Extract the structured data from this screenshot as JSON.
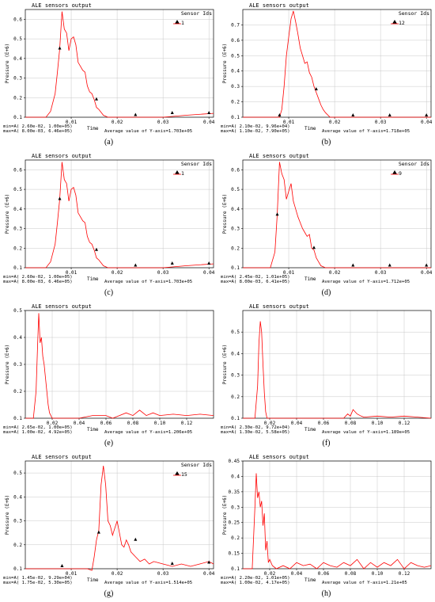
{
  "chart_data": [
    {
      "type": "line",
      "caption": "(a)",
      "title": "ALE sensors output",
      "legend_header": "Sensor Ids",
      "legend_entry": "1",
      "ylabel": "Pressure (E+6)",
      "xlabel": "Time",
      "ylim": [
        0.1,
        0.65
      ],
      "xlim": [
        0,
        0.041
      ],
      "yticks": [
        0.1,
        0.2,
        0.3,
        0.4,
        0.5,
        0.6
      ],
      "xticks": [
        0.01,
        0.02,
        0.03,
        0.04
      ],
      "stats": [
        "min=A(   2.60e-02,  1.00e+05)",
        "max=A(   8.00e-03,  6.46e+05)"
      ],
      "average": "Average value of Y-axis=1.703e+05",
      "series": [
        {
          "x": [
            0,
            0.0045,
            0.0055,
            0.0065,
            0.007,
            0.0075,
            0.008,
            0.0085,
            0.009,
            0.0095,
            0.01,
            0.0105,
            0.011,
            0.0115,
            0.012,
            0.0125,
            0.013,
            0.0135,
            0.014,
            0.0145,
            0.015,
            0.0155,
            0.016,
            0.0165,
            0.017,
            0.018,
            0.02,
            0.03,
            0.035,
            0.041
          ],
          "y": [
            0.1,
            0.1,
            0.13,
            0.22,
            0.33,
            0.45,
            0.64,
            0.55,
            0.53,
            0.44,
            0.5,
            0.51,
            0.47,
            0.38,
            0.36,
            0.34,
            0.33,
            0.26,
            0.23,
            0.22,
            0.19,
            0.15,
            0.14,
            0.125,
            0.11,
            0.1,
            0.1,
            0.1,
            0.11,
            0.12
          ]
        }
      ],
      "markers": [
        {
          "x": 0.0075,
          "y": 0.45
        },
        {
          "x": 0.0155,
          "y": 0.19
        },
        {
          "x": 0.024,
          "y": 0.11
        },
        {
          "x": 0.032,
          "y": 0.12
        },
        {
          "x": 0.04,
          "y": 0.12
        }
      ]
    },
    {
      "type": "line",
      "caption": "(b)",
      "title": "ALE sensors output",
      "legend_header": "Sensor Ids",
      "legend_entry": "12",
      "ylabel": "Pressure (E+6)",
      "xlabel": "Time",
      "ylim": [
        0.1,
        0.8
      ],
      "xlim": [
        0,
        0.041
      ],
      "yticks": [
        0.1,
        0.2,
        0.3,
        0.4,
        0.5,
        0.6,
        0.7
      ],
      "xticks": [
        0.01,
        0.02,
        0.03,
        0.04
      ],
      "stats": [
        "min=A(   2.10e-02,  9.96e+04)",
        "max=A(   1.10e-02,  7.90e+05)"
      ],
      "average": "Average value of Y-axis=1.718e+05",
      "series": [
        {
          "x": [
            0,
            0.008,
            0.0085,
            0.009,
            0.0095,
            0.01,
            0.0105,
            0.011,
            0.0115,
            0.012,
            0.0125,
            0.013,
            0.0135,
            0.014,
            0.0145,
            0.015,
            0.0155,
            0.016,
            0.0165,
            0.017,
            0.0175,
            0.018,
            0.019,
            0.041
          ],
          "y": [
            0.1,
            0.1,
            0.15,
            0.3,
            0.5,
            0.62,
            0.74,
            0.79,
            0.72,
            0.64,
            0.55,
            0.5,
            0.45,
            0.46,
            0.39,
            0.36,
            0.3,
            0.26,
            0.22,
            0.18,
            0.15,
            0.13,
            0.1,
            0.1
          ]
        }
      ],
      "markers": [
        {
          "x": 0.008,
          "y": 0.11
        },
        {
          "x": 0.016,
          "y": 0.28
        },
        {
          "x": 0.024,
          "y": 0.11
        },
        {
          "x": 0.032,
          "y": 0.11
        },
        {
          "x": 0.04,
          "y": 0.11
        }
      ]
    },
    {
      "type": "line",
      "caption": "(c)",
      "title": "ALE sensors output",
      "legend_header": "Sensor Ids",
      "legend_entry": "1",
      "ylabel": "Pressure (E+6)",
      "xlabel": "Time",
      "ylim": [
        0.1,
        0.65
      ],
      "xlim": [
        0,
        0.041
      ],
      "yticks": [
        0.1,
        0.2,
        0.3,
        0.4,
        0.5,
        0.6
      ],
      "xticks": [
        0.01,
        0.02,
        0.03,
        0.04
      ],
      "stats": [
        "min=A(   2.60e-02,  1.00e+05)",
        "max=A(   8.00e-03,  6.46e+05)"
      ],
      "average": "Average value of Y-axis=1.703e+05",
      "series": [
        {
          "x": [
            0,
            0.0045,
            0.0055,
            0.0065,
            0.007,
            0.0075,
            0.008,
            0.0085,
            0.009,
            0.0095,
            0.01,
            0.0105,
            0.011,
            0.0115,
            0.012,
            0.0125,
            0.013,
            0.0135,
            0.014,
            0.0145,
            0.015,
            0.0155,
            0.016,
            0.0165,
            0.017,
            0.018,
            0.02,
            0.03,
            0.035,
            0.041
          ],
          "y": [
            0.1,
            0.1,
            0.13,
            0.22,
            0.33,
            0.45,
            0.64,
            0.55,
            0.53,
            0.44,
            0.5,
            0.51,
            0.47,
            0.38,
            0.36,
            0.34,
            0.33,
            0.26,
            0.23,
            0.22,
            0.19,
            0.15,
            0.14,
            0.125,
            0.11,
            0.1,
            0.1,
            0.1,
            0.11,
            0.12
          ]
        }
      ],
      "markers": [
        {
          "x": 0.0075,
          "y": 0.45
        },
        {
          "x": 0.0155,
          "y": 0.19
        },
        {
          "x": 0.024,
          "y": 0.11
        },
        {
          "x": 0.032,
          "y": 0.12
        },
        {
          "x": 0.04,
          "y": 0.12
        }
      ]
    },
    {
      "type": "line",
      "caption": "(d)",
      "title": "ALE sensors output",
      "legend_header": "Sensor Ids",
      "legend_entry": "9",
      "ylabel": "Pressure (E+6)",
      "xlabel": "Time",
      "ylim": [
        0.1,
        0.65
      ],
      "xlim": [
        0,
        0.041
      ],
      "yticks": [
        0.1,
        0.2,
        0.3,
        0.4,
        0.5,
        0.6
      ],
      "xticks": [
        0.01,
        0.02,
        0.03,
        0.04
      ],
      "stats": [
        "min=A(   2.45e-02,  1.01e+05)",
        "max=A(   8.00e-03,  6.41e+05)"
      ],
      "average": "Average value of Y-axis=1.712e+05",
      "series": [
        {
          "x": [
            0,
            0.006,
            0.007,
            0.0075,
            0.008,
            0.0085,
            0.009,
            0.0095,
            0.01,
            0.0105,
            0.011,
            0.0115,
            0.012,
            0.0125,
            0.013,
            0.0135,
            0.014,
            0.0145,
            0.015,
            0.0155,
            0.016,
            0.0165,
            0.017,
            0.018,
            0.041
          ],
          "y": [
            0.1,
            0.1,
            0.18,
            0.37,
            0.64,
            0.58,
            0.55,
            0.45,
            0.49,
            0.53,
            0.44,
            0.4,
            0.36,
            0.33,
            0.3,
            0.28,
            0.26,
            0.27,
            0.2,
            0.19,
            0.15,
            0.13,
            0.11,
            0.1,
            0.1
          ]
        }
      ],
      "markers": [
        {
          "x": 0.0075,
          "y": 0.37
        },
        {
          "x": 0.0155,
          "y": 0.2
        },
        {
          "x": 0.024,
          "y": 0.11
        },
        {
          "x": 0.032,
          "y": 0.11
        },
        {
          "x": 0.04,
          "y": 0.11
        }
      ]
    },
    {
      "type": "line",
      "caption": "(e)",
      "title": "ALE sensors output",
      "legend_header": "",
      "legend_entry": "",
      "ylabel": "Pressure (E+6)",
      "xlabel": "Time",
      "ylim": [
        0.1,
        0.5
      ],
      "xlim": [
        0,
        0.14
      ],
      "yticks": [
        0.1,
        0.2,
        0.3,
        0.4,
        0.5
      ],
      "xticks": [
        0.02,
        0.04,
        0.06,
        0.08,
        0.1,
        0.12
      ],
      "stats": [
        "min=A(   2.65e-02,  1.00e+05)",
        "max=A(   1.00e-02,  4.92e+05)"
      ],
      "average": "Average value of Y-axis=1.206e+05",
      "series": [
        {
          "x": [
            0,
            0.006,
            0.008,
            0.009,
            0.01,
            0.011,
            0.012,
            0.013,
            0.014,
            0.015,
            0.016,
            0.017,
            0.018,
            0.02,
            0.025,
            0.03,
            0.04,
            0.05,
            0.06,
            0.065,
            0.07,
            0.075,
            0.08,
            0.085,
            0.09,
            0.095,
            0.1,
            0.11,
            0.12,
            0.13,
            0.14
          ],
          "y": [
            0.1,
            0.1,
            0.2,
            0.35,
            0.49,
            0.38,
            0.4,
            0.33,
            0.3,
            0.25,
            0.2,
            0.15,
            0.12,
            0.1,
            0.1,
            0.1,
            0.1,
            0.11,
            0.11,
            0.1,
            0.11,
            0.12,
            0.11,
            0.13,
            0.11,
            0.12,
            0.11,
            0.115,
            0.11,
            0.115,
            0.11
          ]
        }
      ],
      "markers": []
    },
    {
      "type": "line",
      "caption": "(f)",
      "title": "ALE sensors output",
      "legend_header": "",
      "legend_entry": "",
      "ylabel": "Pressure (E+6)",
      "xlabel": "Time",
      "ylim": [
        0.1,
        0.6
      ],
      "xlim": [
        0,
        0.14
      ],
      "yticks": [
        0.1,
        0.2,
        0.3,
        0.4,
        0.5
      ],
      "xticks": [
        0.02,
        0.04,
        0.06,
        0.08,
        0.1,
        0.12
      ],
      "stats": [
        "min=A(   2.30e-02,  9.72e+04)",
        "max=A(   1.30e-02,  5.58e+05)"
      ],
      "average": "Average value of Y-axis=1.189e+05",
      "series": [
        {
          "x": [
            0,
            0.009,
            0.011,
            0.012,
            0.013,
            0.014,
            0.015,
            0.016,
            0.017,
            0.018,
            0.02,
            0.04,
            0.06,
            0.075,
            0.078,
            0.08,
            0.082,
            0.085,
            0.088,
            0.09,
            0.1,
            0.11,
            0.12,
            0.13,
            0.14
          ],
          "y": [
            0.1,
            0.1,
            0.25,
            0.45,
            0.55,
            0.5,
            0.35,
            0.22,
            0.13,
            0.1,
            0.1,
            0.1,
            0.1,
            0.1,
            0.12,
            0.11,
            0.14,
            0.12,
            0.11,
            0.105,
            0.11,
            0.105,
            0.11,
            0.105,
            0.1
          ]
        }
      ],
      "markers": []
    },
    {
      "type": "line",
      "caption": "(g)",
      "title": "ALE sensors output",
      "legend_header": "Sensor Ids",
      "legend_entry": "15",
      "ylabel": "Pressure (E+6)",
      "xlabel": "Time",
      "ylim": [
        0.1,
        0.55
      ],
      "xlim": [
        0,
        0.041
      ],
      "yticks": [
        0.1,
        0.2,
        0.3,
        0.4,
        0.5
      ],
      "xticks": [
        0.01,
        0.02,
        0.03,
        0.04
      ],
      "stats": [
        "min=A(   1.45e-02,  9.29e+04)",
        "max=A(   1.75e-02,  5.30e+05)"
      ],
      "average": "Average value of Y-axis=1.514e+05",
      "series": [
        {
          "x": [
            0,
            0.0105,
            0.012,
            0.0135,
            0.0145,
            0.015,
            0.0155,
            0.016,
            0.0165,
            0.017,
            0.0175,
            0.018,
            0.0185,
            0.019,
            0.0195,
            0.02,
            0.0205,
            0.021,
            0.0215,
            0.022,
            0.0225,
            0.023,
            0.024,
            0.025,
            0.026,
            0.027,
            0.028,
            0.03,
            0.032,
            0.034,
            0.036,
            0.038,
            0.04,
            0.041
          ],
          "y": [
            0.1,
            0.1,
            0.1,
            0.1,
            0.093,
            0.15,
            0.22,
            0.26,
            0.45,
            0.53,
            0.45,
            0.3,
            0.28,
            0.24,
            0.27,
            0.3,
            0.25,
            0.2,
            0.19,
            0.22,
            0.2,
            0.17,
            0.15,
            0.13,
            0.14,
            0.12,
            0.13,
            0.12,
            0.11,
            0.12,
            0.11,
            0.12,
            0.13,
            0.12
          ]
        }
      ],
      "markers": [
        {
          "x": 0.008,
          "y": 0.11
        },
        {
          "x": 0.016,
          "y": 0.25
        },
        {
          "x": 0.024,
          "y": 0.22
        },
        {
          "x": 0.032,
          "y": 0.12
        },
        {
          "x": 0.04,
          "y": 0.125
        }
      ]
    },
    {
      "type": "line",
      "caption": "(h)",
      "title": "ALE sensors output",
      "legend_header": "",
      "legend_entry": "",
      "ylabel": "Pressure (E+6)",
      "xlabel": "Time",
      "ylim": [
        0.1,
        0.45
      ],
      "xlim": [
        0,
        0.14
      ],
      "yticks": [
        0.1,
        0.15,
        0.2,
        0.25,
        0.3,
        0.35,
        0.4,
        0.45
      ],
      "xticks": [
        0.02,
        0.04,
        0.06,
        0.08,
        0.1,
        0.12
      ],
      "stats": [
        "min=A(   2.20e-02,  1.01e+05)",
        "max=A(   1.00e-02,  4.17e+05)"
      ],
      "average": "Average value of Y-axis=1.21e+05",
      "series": [
        {
          "x": [
            0,
            0.007,
            0.008,
            0.009,
            0.01,
            0.011,
            0.012,
            0.013,
            0.014,
            0.015,
            0.016,
            0.017,
            0.018,
            0.019,
            0.02,
            0.022,
            0.025,
            0.03,
            0.035,
            0.04,
            0.045,
            0.05,
            0.055,
            0.06,
            0.065,
            0.07,
            0.075,
            0.08,
            0.085,
            0.09,
            0.095,
            0.1,
            0.105,
            0.11,
            0.115,
            0.12,
            0.125,
            0.13,
            0.135,
            0.14
          ],
          "y": [
            0.1,
            0.1,
            0.2,
            0.3,
            0.41,
            0.33,
            0.35,
            0.3,
            0.32,
            0.24,
            0.28,
            0.16,
            0.19,
            0.12,
            0.13,
            0.11,
            0.1,
            0.11,
            0.1,
            0.12,
            0.11,
            0.115,
            0.1,
            0.12,
            0.11,
            0.105,
            0.12,
            0.11,
            0.13,
            0.1,
            0.12,
            0.105,
            0.12,
            0.11,
            0.13,
            0.1,
            0.12,
            0.11,
            0.105,
            0.11
          ]
        }
      ],
      "markers": []
    }
  ]
}
